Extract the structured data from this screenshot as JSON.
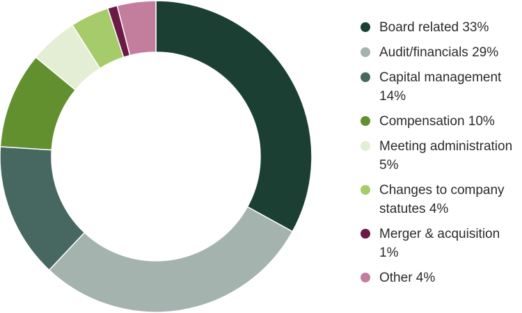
{
  "chart_data": {
    "type": "pie",
    "donut": true,
    "title": "",
    "legend_position": "right",
    "slices": [
      {
        "label": "Board related 33%",
        "value": 33,
        "color": "#1b4033"
      },
      {
        "label": "Audit/financials 29%",
        "value": 29,
        "color": "#a4b3ad"
      },
      {
        "label": "Capital management 14%",
        "value": 14,
        "color": "#476860"
      },
      {
        "label": "Compensation  10%",
        "value": 10,
        "color": "#63902f"
      },
      {
        "label": "Meeting administration 5%",
        "value": 5,
        "color": "#e3eed5"
      },
      {
        "label": "Changes to company statutes 4%",
        "value": 4,
        "color": "#a6cb6a"
      },
      {
        "label": "Merger & acquisition 1%",
        "value": 1,
        "color": "#6b1a45"
      },
      {
        "label": "Other 4%",
        "value": 4,
        "color": "#c47e9d"
      }
    ]
  }
}
